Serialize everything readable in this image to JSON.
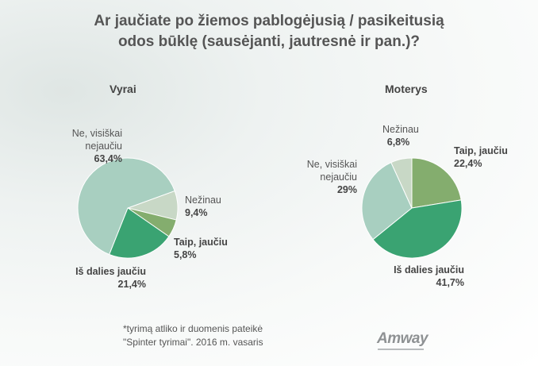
{
  "title_line1": "Ar jaučiate po žiemos pablogėjusią / pasikeitusią",
  "title_line2": "odos būklę (sausėjanti, jautresnė ir pan.)?",
  "chart_data": [
    {
      "type": "pie",
      "title": "Vyrai",
      "slices": [
        {
          "label": "Nežinau",
          "value": 9.4,
          "value_text": "9,4%",
          "color": "#c8d8c6"
        },
        {
          "label": "Taip, jaučiu",
          "value": 5.8,
          "value_text": "5,8%",
          "color": "#84ad6e"
        },
        {
          "label": "Iš dalies jaučiu",
          "value": 21.4,
          "value_text": "21,4%",
          "color": "#3aa372"
        },
        {
          "label": "Ne, visiškai nejaučiu",
          "value": 63.4,
          "value_text": "63,4%",
          "color": "#a8cfc0"
        }
      ]
    },
    {
      "type": "pie",
      "title": "Moterys",
      "slices": [
        {
          "label": "Taip, jaučiu",
          "value": 22.4,
          "value_text": "22,4%",
          "color": "#84ad6e"
        },
        {
          "label": "Iš dalies jaučiu",
          "value": 41.7,
          "value_text": "41,7%",
          "color": "#3aa372"
        },
        {
          "label": "Ne, visiškai nejaučiu",
          "value": 29,
          "value_text": "29%",
          "color": "#a8cfc0"
        },
        {
          "label": "Nežinau",
          "value": 6.8,
          "value_text": "6,8%",
          "color": "#c8d8c6"
        }
      ]
    }
  ],
  "label_text": {
    "men_no_line1": "Ne, visiškai",
    "men_no_line2": "nejaučiu",
    "women_no_line1": "Ne, visiškai",
    "women_no_line2": "nejaučiu"
  },
  "footnote_line1": "*tyrimą atliko ir duomenis pateikė",
  "footnote_line2": "\"Spinter tyrimai\". 2016 m. vasaris",
  "logo_text": "Amway"
}
